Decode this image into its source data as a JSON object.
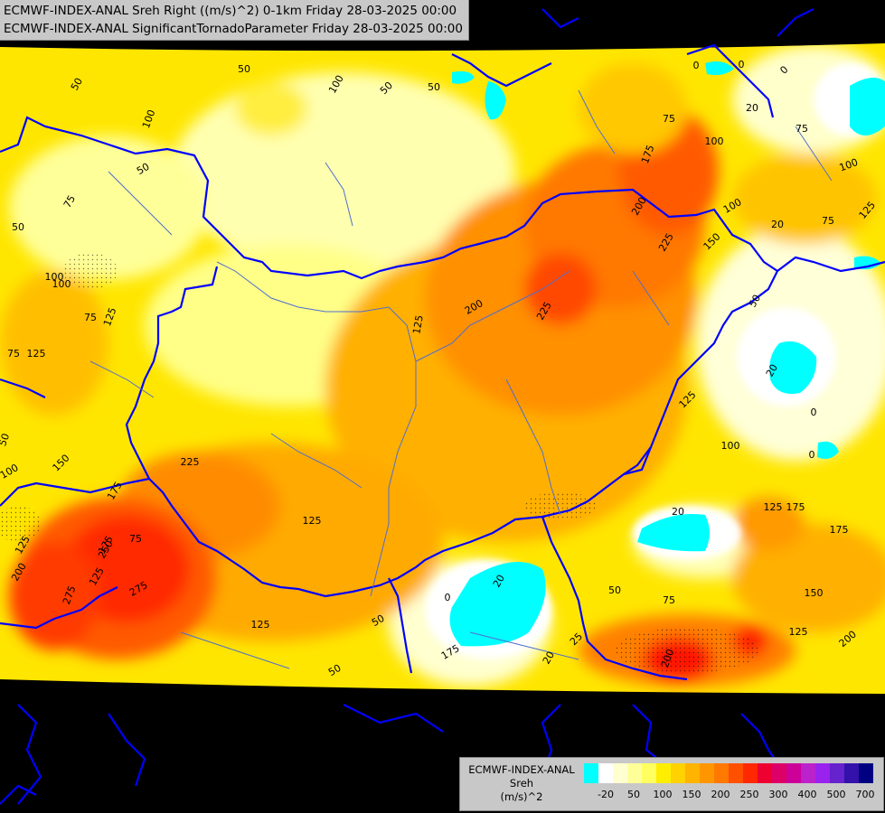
{
  "title": {
    "line1": "ECMWF-INDEX-ANAL Sreh Right ((m/s)^2) 0-1km Friday 28-03-2025 00:00",
    "line2": "ECMWF-INDEX-ANAL SignificantTornadoParameter Friday 28-03-2025 00:00"
  },
  "legend": {
    "source": "ECMWF-INDEX-ANAL",
    "variable": "Sreh",
    "unit": "(m/s)^2",
    "swatch_colors": [
      "#00ffff",
      "#ffffff",
      "#ffffd0",
      "#ffff9a",
      "#ffff60",
      "#ffee00",
      "#ffd200",
      "#ffb400",
      "#ff9600",
      "#ff7800",
      "#ff5000",
      "#ff2800",
      "#ee0030",
      "#dd0066",
      "#cc0099",
      "#bb22cc",
      "#9922ee",
      "#6622cc",
      "#3311aa",
      "#000080"
    ],
    "ticks": [
      "-20",
      "50",
      "100",
      "150",
      "200",
      "250",
      "300",
      "400",
      "500",
      "700"
    ]
  },
  "map": {
    "colors": {
      "ocean_black": "#000000",
      "border_blue": "#0000ff",
      "river_blue": "#4f6dd1",
      "zero_cyan": "#00ffff",
      "low_cream": "#ffffcc",
      "mid_yellow": "#ffe800",
      "orange": "#ffa000",
      "dark_orange": "#ff7000",
      "red": "#ff2000",
      "crimson": "#e0003a"
    },
    "contour_labels": [
      "50",
      "50",
      "100",
      "50",
      "75",
      "50",
      "100",
      "100",
      "75",
      "125",
      "125",
      "100",
      "175",
      "150",
      "125",
      "175",
      "225",
      "250",
      "275",
      "275",
      "200",
      "125",
      "125",
      "50",
      "175",
      "0",
      "20",
      "200",
      "225",
      "125",
      "150",
      "200",
      "225",
      "175",
      "100",
      "75",
      "125",
      "50",
      "100",
      "0",
      "0",
      "20",
      "75",
      "125",
      "100",
      "20",
      "125",
      "20",
      "50",
      "75",
      "150",
      "175",
      "175",
      "125",
      "200",
      "200",
      "0",
      "0",
      "20",
      "75",
      "20",
      "75",
      "100",
      "125",
      "75",
      "50",
      "50",
      "25",
      "50",
      "0",
      "100",
      "50"
    ]
  }
}
